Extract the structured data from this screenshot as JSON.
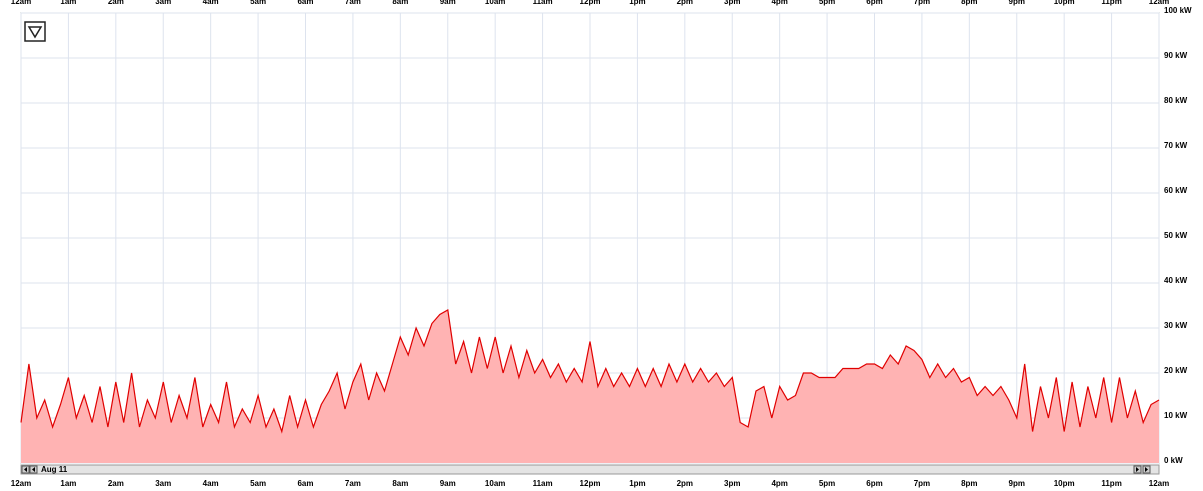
{
  "chart_data": {
    "type": "area",
    "date_label": "Aug 11",
    "x": [
      0,
      10,
      20,
      30,
      40,
      50,
      60,
      70,
      80,
      90,
      100,
      110,
      120,
      130,
      140,
      150,
      160,
      170,
      180,
      190,
      200,
      210,
      220,
      230,
      240,
      250,
      260,
      270,
      280,
      290,
      300,
      310,
      320,
      330,
      340,
      350,
      360,
      370,
      380,
      390,
      400,
      410,
      420,
      430,
      440,
      450,
      460,
      470,
      480,
      490,
      500,
      510,
      520,
      530,
      540,
      550,
      560,
      570,
      580,
      590,
      600,
      610,
      620,
      630,
      640,
      650,
      660,
      670,
      680,
      690,
      700,
      710,
      720,
      730,
      740,
      750,
      760,
      770,
      780,
      790,
      800,
      810,
      820,
      830,
      840,
      850,
      860,
      870,
      880,
      890,
      900,
      910,
      920,
      930,
      940,
      950,
      960,
      970,
      980,
      990,
      1000,
      1010,
      1020,
      1030,
      1040,
      1050,
      1060,
      1070,
      1080,
      1090,
      1100,
      1110,
      1120,
      1130,
      1140,
      1150,
      1160,
      1170,
      1180,
      1190,
      1200,
      1210,
      1220,
      1230,
      1240,
      1250,
      1260,
      1270,
      1280,
      1290,
      1300,
      1310,
      1320,
      1330,
      1340,
      1350,
      1360,
      1370,
      1380,
      1390,
      1400,
      1410,
      1420,
      1430,
      1440
    ],
    "series": [
      {
        "name": "kW",
        "color": "#e00000",
        "fill": "#ffb3b3",
        "values": [
          9,
          22,
          10,
          14,
          8,
          13,
          19,
          10,
          15,
          9,
          17,
          8,
          18,
          9,
          20,
          8,
          14,
          10,
          18,
          9,
          15,
          10,
          19,
          8,
          13,
          9,
          18,
          8,
          12,
          9,
          15,
          8,
          12,
          7,
          15,
          8,
          14,
          8,
          13,
          16,
          20,
          12,
          18,
          22,
          14,
          20,
          16,
          22,
          28,
          24,
          30,
          26,
          31,
          33,
          34,
          22,
          27,
          20,
          28,
          21,
          28,
          20,
          26,
          19,
          25,
          20,
          23,
          19,
          22,
          18,
          21,
          18,
          27,
          17,
          21,
          17,
          20,
          17,
          21,
          17,
          21,
          17,
          22,
          18,
          22,
          18,
          21,
          18,
          20,
          17,
          19,
          9,
          8,
          16,
          17,
          10,
          17,
          14,
          15,
          20,
          20,
          19,
          19,
          19,
          21,
          21,
          21,
          22,
          22,
          21,
          24,
          22,
          26,
          25,
          23,
          19,
          22,
          19,
          21,
          18,
          19,
          15,
          17,
          15,
          17,
          14,
          10,
          22,
          7,
          17,
          10,
          19,
          7,
          18,
          8,
          17,
          10,
          19,
          9,
          19,
          10,
          16,
          9,
          13,
          14
        ]
      }
    ],
    "xlim": [
      0,
      1440
    ],
    "xticks": [
      {
        "value": 0,
        "label": "12am"
      },
      {
        "value": 60,
        "label": "1am"
      },
      {
        "value": 120,
        "label": "2am"
      },
      {
        "value": 180,
        "label": "3am"
      },
      {
        "value": 240,
        "label": "4am"
      },
      {
        "value": 300,
        "label": "5am"
      },
      {
        "value": 360,
        "label": "6am"
      },
      {
        "value": 420,
        "label": "7am"
      },
      {
        "value": 480,
        "label": "8am"
      },
      {
        "value": 540,
        "label": "9am"
      },
      {
        "value": 600,
        "label": "10am"
      },
      {
        "value": 660,
        "label": "11am"
      },
      {
        "value": 720,
        "label": "12pm"
      },
      {
        "value": 780,
        "label": "1pm"
      },
      {
        "value": 840,
        "label": "2pm"
      },
      {
        "value": 900,
        "label": "3pm"
      },
      {
        "value": 960,
        "label": "4pm"
      },
      {
        "value": 1020,
        "label": "5pm"
      },
      {
        "value": 1080,
        "label": "6pm"
      },
      {
        "value": 1140,
        "label": "7pm"
      },
      {
        "value": 1200,
        "label": "8pm"
      },
      {
        "value": 1260,
        "label": "9pm"
      },
      {
        "value": 1320,
        "label": "10pm"
      },
      {
        "value": 1380,
        "label": "11pm"
      },
      {
        "value": 1440,
        "label": "12am"
      }
    ],
    "ylim": [
      0,
      100
    ],
    "yticks": [
      {
        "value": 0,
        "label": "0 kW"
      },
      {
        "value": 10,
        "label": "10 kW"
      },
      {
        "value": 20,
        "label": "20 kW"
      },
      {
        "value": 30,
        "label": "30 kW"
      },
      {
        "value": 40,
        "label": "40 kW"
      },
      {
        "value": 50,
        "label": "50 kW"
      },
      {
        "value": 60,
        "label": "60 kW"
      },
      {
        "value": 70,
        "label": "70 kW"
      },
      {
        "value": 80,
        "label": "80 kW"
      },
      {
        "value": 90,
        "label": "90 kW"
      },
      {
        "value": 100,
        "label": "100 kW"
      }
    ],
    "grid": true
  }
}
